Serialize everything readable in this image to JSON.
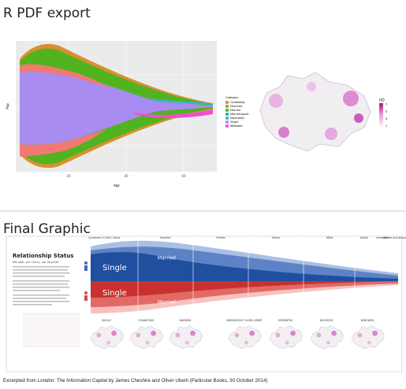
{
  "top": {
    "title": "R PDF export",
    "plot": {
      "x_label": "Age",
      "y_label": "Pop",
      "x_ticks": [
        "20",
        "40",
        "60"
      ],
      "legend_title": "Category",
      "legend": [
        "Cohabiting",
        "Divorced",
        "Married",
        "Married-Apart",
        "Separated",
        "Single",
        "Widowed"
      ]
    },
    "map_legend": {
      "title": "UD",
      "labels": [
        "7",
        "5",
        "3",
        "1"
      ]
    }
  },
  "bottom": {
    "title": "Final Graphic",
    "heading": "Relationship Status",
    "subheading": "We age, we marry, we migrate",
    "age_labels": [
      "Londoners in their...",
      "teens",
      "twenties",
      "thirties",
      "forties",
      "fifties",
      "sixties",
      "seventies",
      "eighties and above"
    ],
    "stream_labels": [
      "Single",
      "Married",
      "Single",
      "Married"
    ],
    "map_labels": [
      "SINGLE",
      "COHABITING",
      "MARRIED",
      "MARRIED BUT LIVING APART",
      "SEPARATED",
      "DIVORCED",
      "WIDOWED"
    ]
  },
  "caption": {
    "prefix": "Excerpted from ",
    "book": "London: The Information Capital",
    "suffix": " by James Cheshire and Oliver Uberti (Particular Books, 30 October 2014)"
  }
}
